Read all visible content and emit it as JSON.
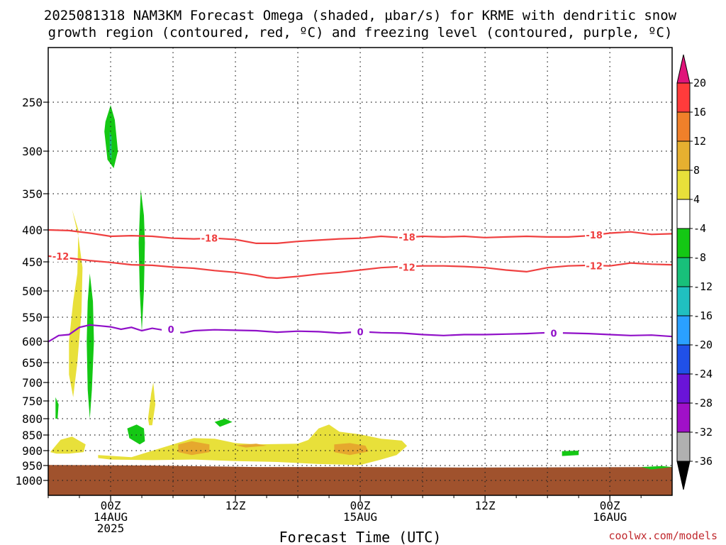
{
  "chart_data": {
    "type": "contour",
    "title_line1": "2025081318 NAM3KM Forecast Omega (shaded, µbar/s) for KRME with dendritic snow",
    "title_line2": "growth region (contoured, red, ºC) and freezing level (contoured, purple, ºC)",
    "xlabel": "Forecast Time (UTC)",
    "credit": "coolwx.com/models",
    "x_units": "hours since 2025081318",
    "xlim": [
      0,
      60
    ],
    "y_units": "hPa",
    "ylim": [
      200,
      1050
    ],
    "y_ticks": [
      "250",
      "300",
      "350",
      "400",
      "450",
      "500",
      "550",
      "600",
      "650",
      "700",
      "750",
      "800",
      "850",
      "900",
      "950",
      "1000"
    ],
    "x_ticks": [
      {
        "x": 6,
        "line1": "00Z",
        "line2": "14AUG",
        "line3": "2025"
      },
      {
        "x": 18,
        "line1": "12Z",
        "line2": "",
        "line3": ""
      },
      {
        "x": 30,
        "line1": "00Z",
        "line2": "15AUG",
        "line3": ""
      },
      {
        "x": 42,
        "line1": "12Z",
        "line2": "",
        "line3": ""
      },
      {
        "x": 54,
        "line1": "00Z",
        "line2": "16AUG",
        "line3": ""
      }
    ],
    "colorbar": {
      "labels": [
        "20",
        "16",
        "12",
        "8",
        "4",
        "-4",
        "-8",
        "-12",
        "-16",
        "-20",
        "-24",
        "-28",
        "-32",
        "-36"
      ],
      "colors": [
        "#ff3b3b",
        "#f0802a",
        "#e6b030",
        "#e8e03a",
        "#ffffff",
        "#14c814",
        "#18c07a",
        "#20c0c0",
        "#2aa0ff",
        "#2050e8",
        "#6a14d8",
        "#a010c8",
        "#b0b0b0"
      ],
      "top_arrow_color": "#e0147a",
      "bottom_arrow_color": "#000000"
    },
    "contours": [
      {
        "name": "-18",
        "value": -18,
        "color": "#ef4040",
        "points": [
          [
            0,
            400
          ],
          [
            2,
            401
          ],
          [
            4,
            405
          ],
          [
            6,
            410
          ],
          [
            8,
            409
          ],
          [
            10,
            410
          ],
          [
            12,
            413
          ],
          [
            14,
            414
          ],
          [
            16,
            413
          ],
          [
            18,
            415
          ],
          [
            20,
            421
          ],
          [
            22,
            421
          ],
          [
            24,
            418
          ],
          [
            26,
            416
          ],
          [
            28,
            414
          ],
          [
            30,
            413
          ],
          [
            32,
            410
          ],
          [
            34,
            412
          ],
          [
            36,
            410
          ],
          [
            38,
            411
          ],
          [
            40,
            410
          ],
          [
            42,
            412
          ],
          [
            44,
            411
          ],
          [
            46,
            410
          ],
          [
            48,
            411
          ],
          [
            50,
            411
          ],
          [
            52,
            409
          ],
          [
            54,
            405
          ],
          [
            56,
            403
          ],
          [
            58,
            407
          ],
          [
            60,
            406
          ]
        ],
        "labels": [
          [
            15.5,
            413
          ],
          [
            34.5,
            411
          ],
          [
            52.5,
            408
          ]
        ]
      },
      {
        "name": "-12",
        "value": -12,
        "color": "#ef4040",
        "points": [
          [
            0,
            441
          ],
          [
            2,
            444
          ],
          [
            4,
            448
          ],
          [
            6,
            451
          ],
          [
            8,
            455
          ],
          [
            10,
            456
          ],
          [
            12,
            459
          ],
          [
            14,
            461
          ],
          [
            16,
            465
          ],
          [
            18,
            468
          ],
          [
            20,
            473
          ],
          [
            21,
            477
          ],
          [
            22,
            478
          ],
          [
            24,
            475
          ],
          [
            26,
            471
          ],
          [
            28,
            468
          ],
          [
            30,
            464
          ],
          [
            32,
            460
          ],
          [
            34,
            458
          ],
          [
            36,
            457
          ],
          [
            38,
            457
          ],
          [
            40,
            458
          ],
          [
            42,
            460
          ],
          [
            44,
            464
          ],
          [
            46,
            467
          ],
          [
            48,
            460
          ],
          [
            50,
            457
          ],
          [
            52,
            456
          ],
          [
            54,
            457
          ],
          [
            56,
            452
          ],
          [
            58,
            454
          ],
          [
            60,
            455
          ]
        ],
        "labels": [
          [
            1.2,
            441
          ],
          [
            34.5,
            459
          ],
          [
            52.5,
            457
          ]
        ]
      },
      {
        "name": "0",
        "value": 0,
        "color": "#9010c8",
        "points": [
          [
            0,
            601
          ],
          [
            1,
            588
          ],
          [
            2,
            586
          ],
          [
            3,
            571
          ],
          [
            4,
            566
          ],
          [
            5,
            568
          ],
          [
            6,
            570
          ],
          [
            7,
            575
          ],
          [
            8,
            571
          ],
          [
            9,
            578
          ],
          [
            10,
            573
          ],
          [
            12,
            580
          ],
          [
            13,
            582
          ],
          [
            14,
            578
          ],
          [
            16,
            576
          ],
          [
            18,
            577
          ],
          [
            20,
            578
          ],
          [
            22,
            581
          ],
          [
            24,
            579
          ],
          [
            26,
            580
          ],
          [
            28,
            583
          ],
          [
            30,
            580
          ],
          [
            32,
            582
          ],
          [
            34,
            583
          ],
          [
            36,
            586
          ],
          [
            38,
            588
          ],
          [
            40,
            586
          ],
          [
            42,
            586
          ],
          [
            44,
            585
          ],
          [
            46,
            584
          ],
          [
            48,
            582
          ],
          [
            50,
            583
          ],
          [
            52,
            584
          ],
          [
            54,
            586
          ],
          [
            56,
            588
          ],
          [
            58,
            587
          ],
          [
            60,
            590
          ]
        ],
        "labels": [
          [
            11.8,
            575
          ],
          [
            30,
            580
          ],
          [
            48.6,
            583
          ]
        ]
      }
    ],
    "omega_fill": [
      {
        "name": "ground",
        "value": "below-surface",
        "color": "#a0522d",
        "points": [
          [
            0,
            948
          ],
          [
            10,
            950
          ],
          [
            20,
            955
          ],
          [
            30,
            955
          ],
          [
            40,
            957
          ],
          [
            50,
            956
          ],
          [
            60,
            955
          ],
          [
            60,
            1050
          ],
          [
            0,
            1050
          ]
        ]
      },
      {
        "name": "4-8",
        "value": "4 to 8",
        "color": "#e8e03a",
        "polygons": [
          [
            [
              2.3,
              372
            ],
            [
              2.9,
              400
            ],
            [
              2.8,
              470
            ],
            [
              2.4,
              520
            ],
            [
              2.0,
              600
            ],
            [
              2.0,
              680
            ],
            [
              2.4,
              740
            ],
            [
              2.8,
              650
            ],
            [
              3.2,
              540
            ],
            [
              3.3,
              460
            ],
            [
              2.9,
              410
            ]
          ],
          [
            [
              0.2,
              905
            ],
            [
              1.2,
              865
            ],
            [
              2.3,
              855
            ],
            [
              3.6,
              880
            ],
            [
              3.4,
              905
            ],
            [
              2.0,
              910
            ],
            [
              0.8,
              910
            ]
          ],
          [
            [
              4.8,
              915
            ],
            [
              8,
              922
            ],
            [
              12,
              880
            ],
            [
              14,
              860
            ],
            [
              16,
              862
            ],
            [
              18,
              876
            ],
            [
              20,
              880
            ],
            [
              24,
              878
            ],
            [
              25,
              866
            ],
            [
              26,
              830
            ],
            [
              27,
              818
            ],
            [
              28,
              840
            ],
            [
              30,
              848
            ],
            [
              32,
              862
            ],
            [
              34,
              868
            ],
            [
              34.5,
              885
            ],
            [
              33.5,
              915
            ],
            [
              32,
              930
            ],
            [
              30,
              948
            ],
            [
              26,
              945
            ],
            [
              22,
              938
            ],
            [
              18,
              935
            ],
            [
              14,
              930
            ],
            [
              10,
              932
            ],
            [
              6,
              930
            ],
            [
              4.8,
              925
            ]
          ],
          [
            [
              9.6,
              800
            ],
            [
              9.9,
              730
            ],
            [
              10.1,
              700
            ],
            [
              10.3,
              760
            ],
            [
              10.0,
              820
            ],
            [
              9.7,
              820
            ]
          ]
        ]
      },
      {
        "name": "8-12",
        "value": "8 to 12",
        "color": "#e6a82e",
        "polygons": [
          [
            [
              12.5,
              880
            ],
            [
              13.8,
              870
            ],
            [
              15.5,
              880
            ],
            [
              15.5,
              905
            ],
            [
              13.8,
              915
            ],
            [
              12.5,
              905
            ]
          ],
          [
            [
              18,
              883
            ],
            [
              20,
              878
            ],
            [
              21,
              884
            ],
            [
              19,
              890
            ]
          ],
          [
            [
              27.5,
              880
            ],
            [
              29,
              876
            ],
            [
              30.5,
              884
            ],
            [
              30.8,
              903
            ],
            [
              29,
              915
            ],
            [
              27.5,
              905
            ]
          ]
        ]
      },
      {
        "name": "-4 to -8",
        "value": "-4 to -8",
        "color": "#14c814",
        "polygons": [
          [
            [
              5.5,
              270
            ],
            [
              6,
              253
            ],
            [
              6.4,
              268
            ],
            [
              6.7,
              300
            ],
            [
              6.3,
              320
            ],
            [
              5.7,
              310
            ],
            [
              5.4,
              280
            ]
          ],
          [
            [
              8.9,
              345
            ],
            [
              9.2,
              380
            ],
            [
              9.3,
              420
            ],
            [
              9.2,
              500
            ],
            [
              9.0,
              580
            ],
            [
              8.8,
              500
            ],
            [
              8.7,
              420
            ],
            [
              8.8,
              380
            ]
          ],
          [
            [
              4.0,
              470
            ],
            [
              4.3,
              520
            ],
            [
              4.4,
              600
            ],
            [
              4.2,
              720
            ],
            [
              4.0,
              800
            ],
            [
              3.8,
              720
            ],
            [
              3.7,
              600
            ],
            [
              3.8,
              520
            ]
          ],
          [
            [
              0.7,
              740
            ],
            [
              1.0,
              760
            ],
            [
              0.9,
              800
            ],
            [
              0.7,
              800
            ]
          ],
          [
            [
              7.6,
              830
            ],
            [
              8.5,
              818
            ],
            [
              9.2,
              830
            ],
            [
              9.3,
              870
            ],
            [
              8.8,
              880
            ],
            [
              7.8,
              860
            ]
          ],
          [
            [
              16.0,
              810
            ],
            [
              17.0,
              800
            ],
            [
              17.7,
              810
            ],
            [
              16.5,
              825
            ]
          ],
          [
            [
              49.4,
              902
            ],
            [
              51.0,
              900
            ],
            [
              51.0,
              915
            ],
            [
              49.4,
              918
            ]
          ],
          [
            [
              57,
              955
            ],
            [
              59,
              952
            ],
            [
              60,
              955
            ],
            [
              58,
              963
            ]
          ]
        ]
      },
      {
        "name": "-8 to -12",
        "value": "-8 to -12",
        "color": "#18c07a",
        "polygons": [
          [
            [
              5.9,
              280
            ],
            [
              6.1,
              285
            ],
            [
              6.1,
              310
            ],
            [
              5.9,
              305
            ]
          ]
        ]
      }
    ]
  }
}
